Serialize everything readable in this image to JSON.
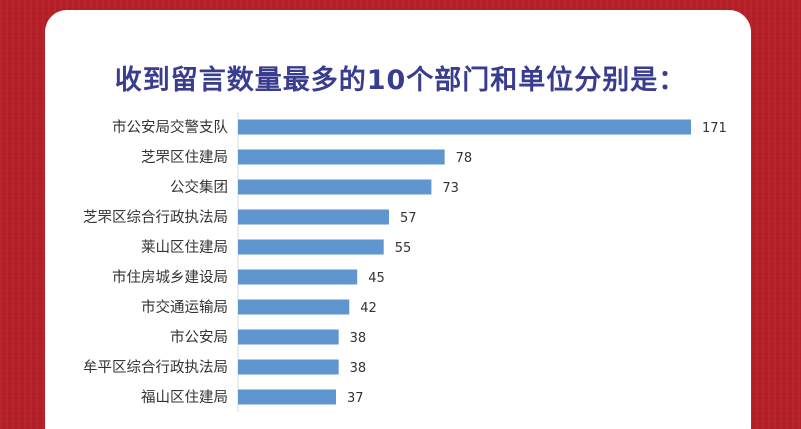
{
  "title": "收到留言数量最多的10个部门和单位分别是：",
  "colors": {
    "background": "#b51f28",
    "card": "#ffffff",
    "title": "#3a3d8f",
    "bar": "#5f96cf"
  },
  "chart_data": {
    "type": "bar",
    "orientation": "horizontal",
    "categories": [
      "市公安局交警支队",
      "芝罘区住建局",
      "公交集团",
      "芝罘区综合行政执法局",
      "莱山区住建局",
      "市住房城乡建设局",
      "市交通运输局",
      "市公安局",
      "牟平区综合行政执法局",
      "福山区住建局"
    ],
    "values": [
      171,
      78,
      73,
      57,
      55,
      45,
      42,
      38,
      38,
      37
    ],
    "title": "收到留言数量最多的10个部门和单位分别是：",
    "xlabel": "",
    "ylabel": "",
    "xlim": [
      0,
      171
    ],
    "grid": false,
    "legend": "none",
    "data_labels": true
  }
}
